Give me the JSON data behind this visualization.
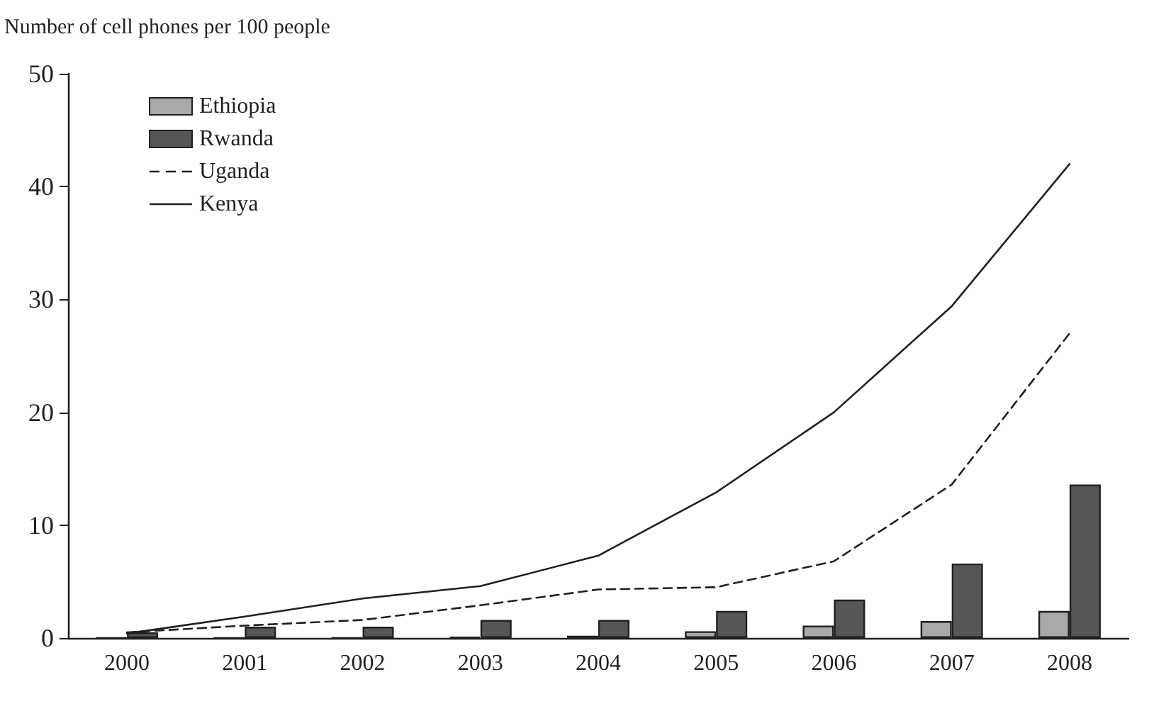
{
  "chart_data": {
    "type": "bar",
    "ylabel": "Number of cell phones per 100 people",
    "categories": [
      "2000",
      "2001",
      "2002",
      "2003",
      "2004",
      "2005",
      "2006",
      "2007",
      "2008"
    ],
    "series": [
      {
        "name": "Ethiopia",
        "color": "#a8a9ab",
        "values": [
          0,
          0,
          0,
          0.1,
          0.2,
          0.6,
          1.1,
          1.5,
          2.4
        ]
      },
      {
        "name": "Rwanda",
        "color": "#555658",
        "values": [
          0.5,
          1.0,
          1.0,
          1.6,
          1.6,
          2.4,
          3.4,
          6.6,
          13.6
        ]
      },
      {
        "name": "Uganda",
        "type": "line",
        "color": "#231f20",
        "line_style": "dashed",
        "values": [
          0.5,
          1.1,
          1.6,
          2.9,
          4.3,
          4.5,
          6.8,
          13.6,
          27
        ]
      },
      {
        "name": "Kenya",
        "type": "line",
        "color": "#231f20",
        "line_style": "solid",
        "values": [
          0.4,
          1.9,
          3.5,
          4.6,
          7.3,
          12.9,
          20,
          29.4,
          42
        ]
      }
    ],
    "ylim": [
      0,
      50
    ],
    "yticks": [
      0,
      10,
      20,
      30,
      40,
      50
    ],
    "grid": false,
    "legend": "top left",
    "marker": "none"
  }
}
